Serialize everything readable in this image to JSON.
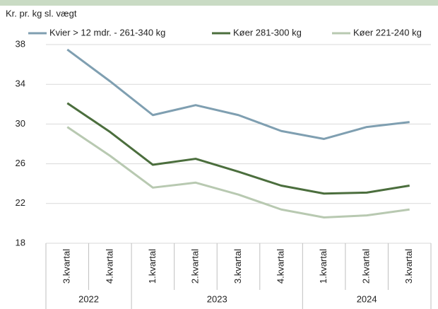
{
  "chart_data": {
    "type": "line",
    "title": "Kr. pr. kg sl. vægt",
    "groups": [
      {
        "name": "2022",
        "categories": [
          "3.kvartal",
          "4.kvartal"
        ]
      },
      {
        "name": "2023",
        "categories": [
          "1.kvartal",
          "2.kvartal",
          "3.kvartal",
          "4.kvartal"
        ]
      },
      {
        "name": "2024",
        "categories": [
          "1.kvartal",
          "2.kvartal",
          "3.kvartal"
        ]
      }
    ],
    "series": [
      {
        "name": "Kvier > 12 mdr. - 261-340 kg",
        "color": "#7f9fb1",
        "values": [
          37.5,
          34.3,
          30.9,
          31.9,
          30.9,
          29.3,
          28.5,
          29.7,
          30.2
        ]
      },
      {
        "name": "Køer 281-300 kg",
        "color": "#4b6e3d",
        "values": [
          32.1,
          29.2,
          25.9,
          26.5,
          25.2,
          23.8,
          23.0,
          23.1,
          23.8
        ]
      },
      {
        "name": "Køer 221-240 kg",
        "color": "#b8c9b1",
        "values": [
          29.7,
          26.8,
          23.6,
          24.1,
          22.9,
          21.4,
          20.6,
          20.8,
          21.4
        ]
      }
    ],
    "ylim": [
      18,
      38
    ],
    "yticks": [
      18,
      22,
      26,
      30,
      34,
      38
    ],
    "grid": true
  }
}
